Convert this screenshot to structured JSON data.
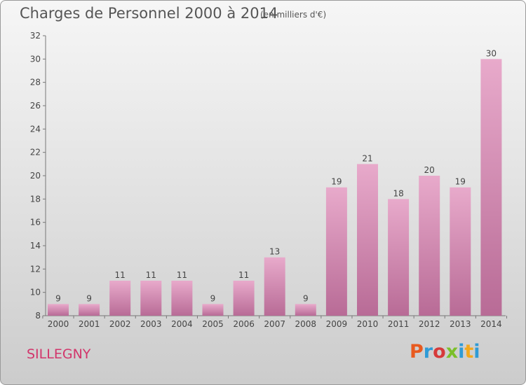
{
  "header": {
    "title": "Charges de Personnel 2000 à 2014",
    "subtitle": "(en milliers d'€)"
  },
  "footer": {
    "location": "SILLEGNY",
    "brand": "Proxiti",
    "brand_colors": [
      "#e85a1f",
      "#2f9bd6",
      "#d63a3a",
      "#7bbf2a",
      "#2f9bd6",
      "#f2a81d",
      "#2f9bd6"
    ]
  },
  "chart_data": {
    "type": "bar",
    "categories": [
      "2000",
      "2001",
      "2002",
      "2003",
      "2004",
      "2005",
      "2006",
      "2007",
      "2008",
      "2009",
      "2010",
      "2011",
      "2012",
      "2013",
      "2014"
    ],
    "values": [
      9,
      9,
      11,
      11,
      11,
      9,
      11,
      13,
      9,
      19,
      21,
      18,
      20,
      19,
      30
    ],
    "data_labels": [
      "9",
      "9",
      "11",
      "11",
      "11",
      "9",
      "11",
      "13",
      "9",
      "19",
      "21",
      "18",
      "20",
      "19",
      "30"
    ],
    "ylim": [
      8,
      32
    ],
    "yticks": [
      8,
      10,
      12,
      14,
      16,
      18,
      20,
      22,
      24,
      26,
      28,
      30,
      32
    ],
    "grid": false,
    "bar_color": "#d98fb4",
    "bar_color_top": "#e8aacb",
    "bar_color_bottom": "#b86b96"
  }
}
